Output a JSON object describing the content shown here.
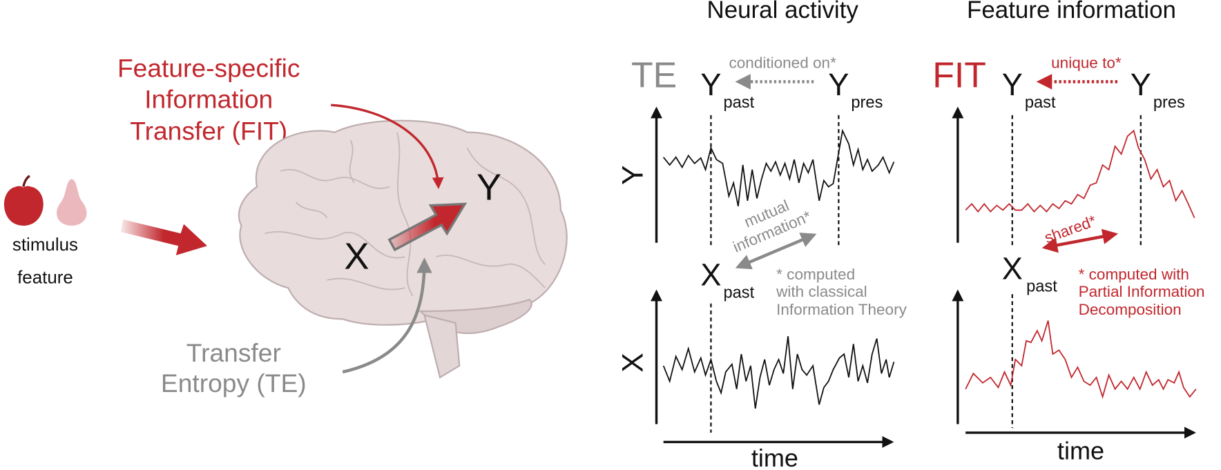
{
  "left": {
    "fit_label": [
      "Feature-specific",
      "Information",
      "Transfer (FIT)"
    ],
    "stimulus_label": [
      "stimulus",
      "feature"
    ],
    "brain_nodes": [
      "X",
      "Y"
    ],
    "te_label": [
      "Transfer",
      "Entropy (TE)"
    ]
  },
  "neural": {
    "title": "Neural activity",
    "measure": "TE",
    "y_past": {
      "symbol": "Y",
      "sub": "past"
    },
    "y_pres": {
      "symbol": "Y",
      "sub": "pres"
    },
    "arrow_label": "conditioned on*",
    "y_axis": "Y",
    "x_axis": "X",
    "pair_label": [
      "mutual",
      "information*"
    ],
    "x_past": {
      "symbol": "X",
      "sub": "past"
    },
    "note": [
      "* computed",
      "with classical",
      "Information Theory"
    ],
    "time_label": "time"
  },
  "feature": {
    "title": "Feature information",
    "measure": "FIT",
    "y_past": {
      "symbol": "Y",
      "sub": "past"
    },
    "y_pres": {
      "symbol": "Y",
      "sub": "pres"
    },
    "arrow_label": "unique to*",
    "pair_label": [
      "shared*"
    ],
    "x_past": {
      "symbol": "X",
      "sub": "past"
    },
    "note": [
      "* computed with",
      "Partial Information",
      "Decomposition"
    ],
    "time_label": "time"
  }
}
